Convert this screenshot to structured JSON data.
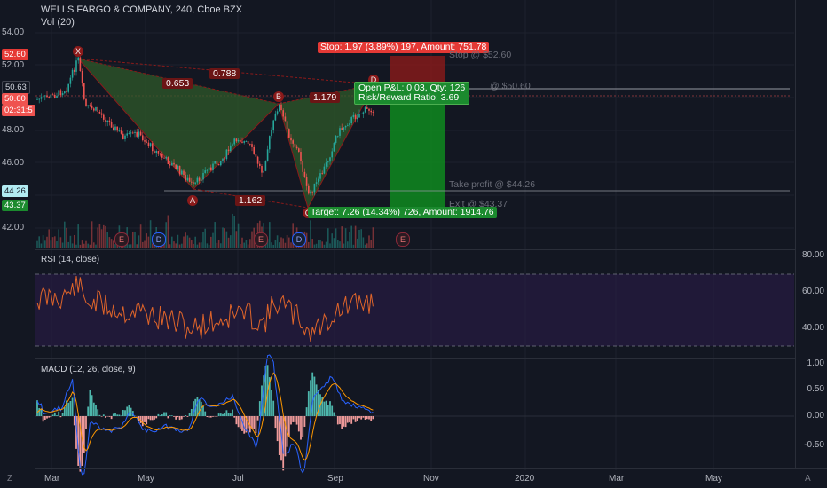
{
  "header": {
    "symbol_line": "WELLS FARGO & COMPANY, 240, Cboe BZX",
    "volume_label": "Vol (20)"
  },
  "price_axis": {
    "left_ticks": [
      "54.00",
      "52.00",
      "48.00",
      "46.00",
      "42.00"
    ],
    "right_ticks": [
      "80.00",
      "60.00",
      "40.00"
    ],
    "badges": {
      "stop": "52.60",
      "entry": "50.63",
      "last": "50.60",
      "countdown": "02:31:5",
      "target_level": "44.26",
      "exit_level": "43.37"
    }
  },
  "macd_axis": {
    "ticks": [
      "1.00",
      "0.50",
      "0.00",
      "-0.50"
    ]
  },
  "time_axis": {
    "ticks": [
      "Mar",
      "May",
      "Jul",
      "Sep",
      "Nov",
      "2020",
      "Mar",
      "May"
    ]
  },
  "pattern": {
    "points": {
      "X": "X",
      "A": "A",
      "B": "B",
      "C": "C",
      "D": "D"
    },
    "ratios": {
      "xb": "0.788",
      "xb_left": "0.653",
      "bd": "1.179",
      "ac": "1.162"
    }
  },
  "position": {
    "stop_box": "Stop: 1.97 (3.89%) 197, Amount: 751.78",
    "pnl_line1": "Open P&L: 0.03, Qty: 126",
    "pnl_line2": "Risk/Reward Ratio: 3.69",
    "target_box": "Target: 7.26 (14.34%) 726, Amount: 1914.76",
    "stop_ghost": "Stop @ $52.60",
    "entry_ghost": "@ $50.60",
    "take_profit": "Take profit @ $44.26",
    "exit_ghost": "Exit @ $43.37"
  },
  "events": [
    "E",
    "D",
    "E",
    "D",
    "E"
  ],
  "rsi": {
    "label": "RSI (14, close)",
    "ticks": [
      "80.00",
      "60.00",
      "40.00"
    ]
  },
  "macd": {
    "label": "MACD (12, 26, close, 9)"
  },
  "corner": {
    "left": "Z",
    "right": "A"
  },
  "colors": {
    "background": "#131722",
    "up": "#26a69a",
    "down": "#ef5350",
    "stop_zone": "#8b1a1a",
    "target_zone": "#0f8a1e",
    "rsi_line": "#e0652a",
    "rsi_band": "#2b1b4a",
    "macd_line": "#2962ff",
    "signal_line": "#ff9800",
    "pattern_fill": "#2f5a2a"
  }
}
